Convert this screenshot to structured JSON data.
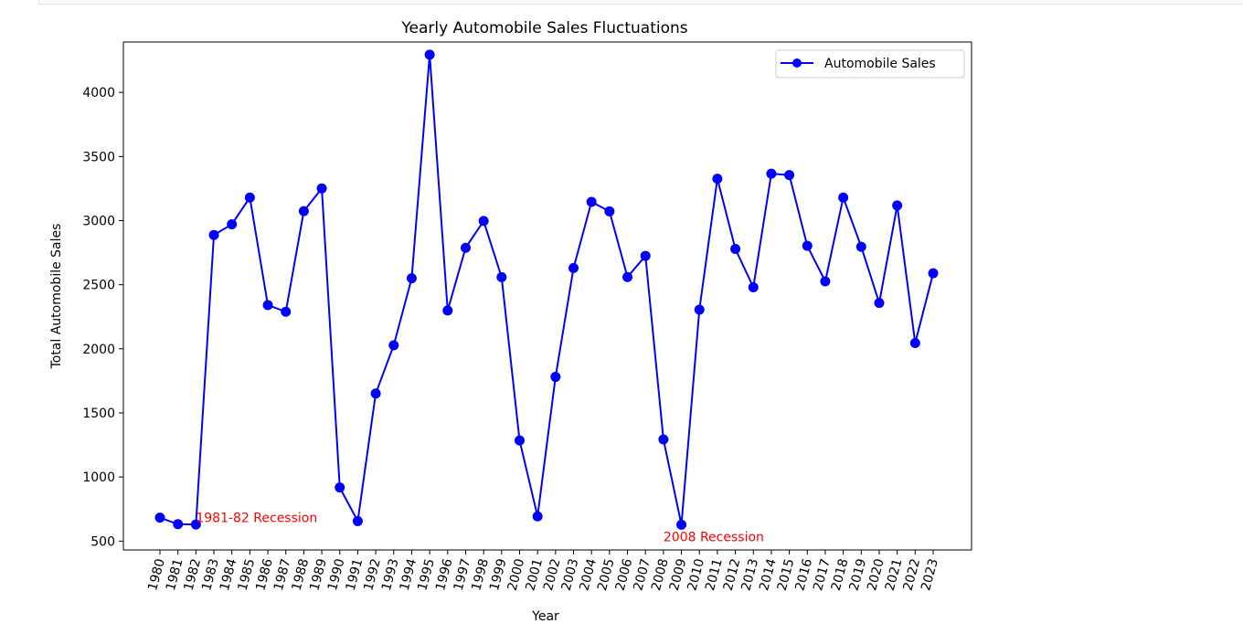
{
  "chart_data": {
    "type": "line",
    "title": "Yearly Automobile Sales Fluctuations",
    "xlabel": "Year",
    "ylabel": "Total Automobile Sales",
    "categories": [
      "1980",
      "1981",
      "1982",
      "1983",
      "1984",
      "1985",
      "1986",
      "1987",
      "1988",
      "1989",
      "1990",
      "1991",
      "1992",
      "1993",
      "1994",
      "1995",
      "1996",
      "1997",
      "1998",
      "1999",
      "2000",
      "2001",
      "2002",
      "2003",
      "2004",
      "2005",
      "2006",
      "2007",
      "2008",
      "2009",
      "2010",
      "2011",
      "2012",
      "2013",
      "2014",
      "2015",
      "2016",
      "2017",
      "2018",
      "2019",
      "2020",
      "2021",
      "2022",
      "2023"
    ],
    "series": [
      {
        "name": "Automobile Sales",
        "color": "#0000ff",
        "values": [
          683,
          632,
          630,
          2888,
          2971,
          3180,
          2341,
          2289,
          3074,
          3251,
          918,
          656,
          1651,
          2027,
          2550,
          4294,
          2299,
          2788,
          2997,
          2559,
          1285,
          693,
          1781,
          2630,
          3146,
          3072,
          2560,
          2725,
          1293,
          628,
          2305,
          3327,
          2779,
          2480,
          3366,
          3355,
          2803,
          2526,
          3180,
          2796,
          2358,
          3118,
          2045,
          2589
        ]
      }
    ],
    "ylim": [
      431,
      4393
    ],
    "yticks": [
      500,
      1000,
      1500,
      2000,
      2500,
      3000,
      3500,
      4000
    ],
    "legend": "top-right",
    "grid": false,
    "annotations": [
      {
        "text": "1981-82 Recession",
        "x": "1982",
        "y": 650,
        "color": "#ff0000"
      },
      {
        "text": "2008 Recession",
        "x": "2008",
        "y": 500,
        "color": "#ff0000"
      }
    ]
  }
}
